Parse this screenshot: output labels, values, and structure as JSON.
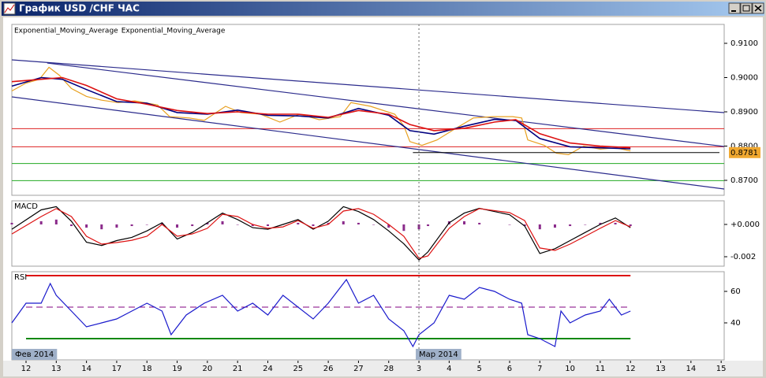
{
  "window": {
    "title": "График USD /CHF ЧАС"
  },
  "x_axis": {
    "xlim": [
      -0.47,
      23.1
    ],
    "ticks": [
      {
        "value": 0,
        "label": "12"
      },
      {
        "value": 1,
        "label": "13"
      },
      {
        "value": 2,
        "label": "14"
      },
      {
        "value": 3,
        "label": "17"
      },
      {
        "value": 4,
        "label": "18"
      },
      {
        "value": 5,
        "label": "19"
      },
      {
        "value": 6,
        "label": "20"
      },
      {
        "value": 7,
        "label": "21"
      },
      {
        "value": 8,
        "label": "24"
      },
      {
        "value": 9,
        "label": "25"
      },
      {
        "value": 10,
        "label": "26"
      },
      {
        "value": 11,
        "label": "27"
      },
      {
        "value": 12,
        "label": "28"
      },
      {
        "value": 13,
        "label": "3"
      },
      {
        "value": 14,
        "label": "4"
      },
      {
        "value": 15,
        "label": "5"
      },
      {
        "value": 16,
        "label": "6"
      },
      {
        "value": 17,
        "label": "7"
      },
      {
        "value": 18,
        "label": "10"
      },
      {
        "value": 19,
        "label": "11"
      },
      {
        "value": 20,
        "label": "12"
      },
      {
        "value": 21,
        "label": "13"
      },
      {
        "value": 22,
        "label": "14"
      },
      {
        "value": 23,
        "label": "15"
      }
    ],
    "month_labels": [
      {
        "value": 0,
        "label": "Фев 2014"
      },
      {
        "value": 13,
        "label": "Мар 2014"
      }
    ]
  },
  "chart_data": [
    {
      "type": "line",
      "legend": "top-left",
      "ylim": [
        0.86563,
        0.91552
      ],
      "yticks": [
        {
          "value": 0.91,
          "label": "0.9100"
        },
        {
          "value": 0.9,
          "label": "0.9000"
        },
        {
          "value": 0.89,
          "label": "0.8900"
        },
        {
          "value": 0.88,
          "label": "0.8800"
        },
        {
          "value": 0.87,
          "label": "0.8700"
        }
      ],
      "last_price": 0.8781,
      "last_price_color": "#f0a830",
      "hlines": [
        {
          "value": 0.8851,
          "color": "#dd2222"
        },
        {
          "value": 0.8798,
          "color": "#dd2222"
        },
        {
          "value": 0.8749,
          "color": "#22aa22"
        },
        {
          "value": 0.8699,
          "color": "#22aa22"
        }
      ],
      "series": [
        {
          "color": "#2b2b8c",
          "x": [
            -0.47,
            23.1
          ],
          "values": [
            0.90517,
            0.88977
          ]
        },
        {
          "color": "#2b2b8c",
          "x": [
            0.7,
            23.1
          ],
          "values": [
            0.90425,
            0.87989
          ]
        },
        {
          "color": "#2b2b8c",
          "x": [
            -0.47,
            23.1
          ],
          "values": [
            0.89437,
            0.86747
          ]
        },
        {
          "color": "#e8a020",
          "x": [
            -0.47,
            0,
            0.44,
            0.76,
            1.1,
            1.5,
            2,
            2.5,
            3.05,
            3.6,
            4.35,
            4.75,
            5.4,
            5.9,
            6.6,
            7.1,
            7.75,
            8.4,
            9.05,
            9.7,
            10.4,
            10.75,
            11.4,
            12.2,
            12.5,
            12.7,
            13.1,
            13.6,
            14.15,
            14.8,
            15.45,
            16.1,
            16.4,
            16.6,
            17.15,
            17.55,
            17.95,
            18.45,
            19,
            19.5,
            20
          ],
          "values": [
            0.8961,
            0.8984,
            0.8995,
            0.903,
            0.9007,
            0.8968,
            0.8945,
            0.8934,
            0.8927,
            0.8932,
            0.892,
            0.8886,
            0.8882,
            0.8875,
            0.8916,
            0.8898,
            0.8893,
            0.887,
            0.8893,
            0.8877,
            0.8886,
            0.8927,
            0.8916,
            0.8893,
            0.8859,
            0.8813,
            0.8802,
            0.8818,
            0.8848,
            0.8882,
            0.8886,
            0.8886,
            0.8882,
            0.8818,
            0.8802,
            0.8779,
            0.8775,
            0.88,
            0.8791,
            0.8795,
            0.8786
          ]
        },
        {
          "name": "Exponential_Moving_Average",
          "color": "#000080",
          "x": [
            -0.47,
            0.5,
            1.2,
            2,
            3,
            4,
            5,
            6,
            7,
            8,
            9,
            10,
            11,
            12,
            12.7,
            13.5,
            14.5,
            15.5,
            16.2,
            17,
            18,
            19,
            20
          ],
          "values": [
            0.8975,
            0.9,
            0.8995,
            0.8965,
            0.893,
            0.8925,
            0.8898,
            0.8893,
            0.8905,
            0.889,
            0.8888,
            0.8882,
            0.891,
            0.889,
            0.8845,
            0.8835,
            0.8858,
            0.8878,
            0.8875,
            0.8822,
            0.8798,
            0.8795,
            0.8792
          ]
        },
        {
          "name": "Exponential_Moving_Average",
          "color": "#dd1111",
          "x": [
            -0.47,
            0.5,
            1.2,
            2,
            3,
            4,
            5,
            6,
            7,
            8,
            9,
            10,
            11,
            12,
            12.7,
            13.5,
            14.5,
            15.5,
            16.2,
            17,
            18,
            19,
            20
          ],
          "values": [
            0.8988,
            0.8995,
            0.9,
            0.8977,
            0.8938,
            0.8922,
            0.8904,
            0.8895,
            0.89,
            0.8893,
            0.8893,
            0.8884,
            0.8904,
            0.8893,
            0.8863,
            0.8845,
            0.8852,
            0.887,
            0.8877,
            0.8836,
            0.8809,
            0.88,
            0.8795
          ]
        }
      ]
    },
    {
      "type": "line",
      "title": "MACD",
      "ylim": [
        -0.002585,
        0.001463
      ],
      "yticks": [
        {
          "value": 0,
          "label": "+0.000"
        },
        {
          "value": -0.002,
          "label": "-0.002"
        }
      ],
      "series": [
        {
          "type": "bar",
          "color": "#8b2b8b",
          "x": [
            -0.47,
            0.5,
            1,
            1.5,
            2,
            2.5,
            3,
            3.5,
            4,
            4.5,
            5,
            5.5,
            6,
            6.5,
            7,
            7.5,
            8,
            8.5,
            9,
            9.5,
            10,
            10.5,
            11,
            11.5,
            12,
            12.5,
            13,
            13.3,
            14,
            14.5,
            15,
            16,
            16.5,
            17,
            17.5,
            18,
            18.5,
            19,
            19.5,
            20
          ],
          "values": [
            0.0001,
            0.0002,
            0.0003,
            -0.0001,
            -0.0002,
            -0.0003,
            -0.0002,
            -0.0001,
            0,
            0.0001,
            -0.0002,
            -0.0001,
            0.0001,
            0.0002,
            0,
            -0.0001,
            -0.0001,
            0,
            0.0001,
            -0.0001,
            0.0001,
            0.0002,
            0.0001,
            0,
            -0.0002,
            -0.0004,
            -0.0003,
            -0.0001,
            0.0002,
            0.0002,
            0.0001,
            0,
            -0.0001,
            -0.0003,
            -0.0002,
            -0.0001,
            0,
            0.0001,
            0.0001,
            -0.0001
          ]
        },
        {
          "color": "#000000",
          "x": [
            -0.47,
            0.5,
            1,
            1.5,
            2,
            2.5,
            3,
            3.5,
            4,
            4.5,
            5,
            5.5,
            6,
            6.5,
            7,
            7.5,
            8,
            8.5,
            9,
            9.5,
            10,
            10.5,
            11,
            11.5,
            12,
            12.5,
            13,
            13.3,
            14,
            14.5,
            15,
            16,
            16.5,
            17,
            17.5,
            18,
            18.5,
            19,
            19.5,
            20
          ],
          "values": [
            -0.0003,
            0.0009,
            0.0011,
            0.0002,
            -0.0011,
            -0.0013,
            -0.001,
            -0.0008,
            -0.0004,
            0.0001,
            -0.0009,
            -0.0005,
            0.0001,
            0.0007,
            0.0003,
            -0.0002,
            -0.0003,
            0,
            0.0003,
            -0.0003,
            0.0002,
            0.0011,
            0.0008,
            0.0003,
            -0.0004,
            -0.0012,
            -0.0022,
            -0.0017,
            0.0001,
            0.0007,
            0.001,
            0.0006,
            -0.0001,
            -0.0018,
            -0.0015,
            -0.001,
            -0.0005,
            0,
            0.0004,
            -0.0002
          ]
        },
        {
          "color": "#dd1111",
          "x": [
            -0.47,
            0.5,
            1,
            1.5,
            2,
            2.5,
            3,
            3.5,
            4,
            4.5,
            5,
            5.5,
            6,
            6.5,
            7,
            7.5,
            8,
            8.5,
            9,
            9.5,
            10,
            10.5,
            11,
            11.5,
            12,
            12.5,
            13,
            13.3,
            14,
            14.5,
            15,
            16,
            16.5,
            17,
            17.5,
            18,
            18.5,
            19,
            19.5,
            20
          ],
          "values": [
            -0.00059,
            0.00049,
            0.00098,
            0.00049,
            -0.00073,
            -0.00122,
            -0.00112,
            -0.00098,
            -0.00073,
            0,
            -0.00073,
            -0.00059,
            -0.00024,
            0.00063,
            0.00049,
            0,
            -0.00024,
            -0.00015,
            0.00024,
            -0.00024,
            0,
            0.00083,
            0.00098,
            0.00063,
            0,
            -0.00073,
            -0.0021,
            -0.00195,
            -0.00024,
            0.00049,
            0.00098,
            0.00073,
            0.00024,
            -0.00146,
            -0.00161,
            -0.00122,
            -0.00073,
            -0.00024,
            0.00024,
            -0.00015
          ]
        }
      ]
    },
    {
      "type": "line",
      "title": "RSI",
      "ylim": [
        16.5,
        72.5
      ],
      "yticks": [
        60,
        40
      ],
      "levels": [
        {
          "value": 70,
          "color": "#dd1111"
        },
        {
          "value": 50,
          "color": "#800080",
          "dashed": true
        },
        {
          "value": 30,
          "color": "#118811"
        }
      ],
      "series": [
        {
          "color": "#1a1acc",
          "x": [
            -0.47,
            0,
            0.5,
            0.8,
            1,
            1.5,
            2,
            2.5,
            3,
            3.5,
            4,
            4.5,
            4.8,
            5.3,
            5.9,
            6.5,
            7,
            7.5,
            8,
            8.5,
            9,
            9.5,
            10,
            10.6,
            11,
            11.5,
            12,
            12.5,
            12.8,
            13,
            13.5,
            14,
            14.5,
            15,
            15.5,
            16,
            16.4,
            16.6,
            17,
            17.5,
            17.7,
            18,
            18.5,
            19,
            19.3,
            19.7,
            20
          ],
          "values": [
            40,
            52.5,
            52.5,
            65,
            57.5,
            47.5,
            37.5,
            40,
            42.5,
            47.5,
            52.5,
            47.5,
            32.5,
            45,
            52.5,
            57.5,
            47.5,
            52.5,
            45,
            57.5,
            50,
            42.5,
            52.5,
            67.5,
            52.5,
            57.5,
            42.5,
            35,
            25,
            32.5,
            40,
            57.5,
            55,
            62.5,
            60,
            55,
            52.5,
            32.5,
            30,
            25,
            47.5,
            40,
            45,
            47.5,
            55,
            45,
            47.5
          ]
        }
      ]
    }
  ]
}
